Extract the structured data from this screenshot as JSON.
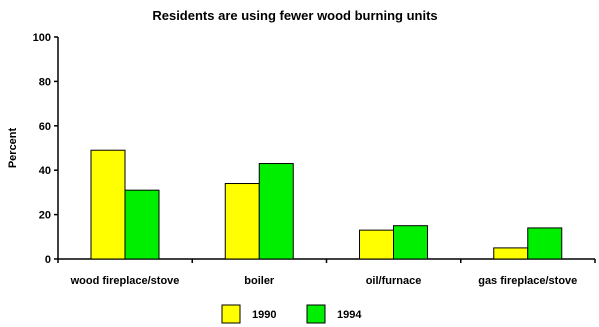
{
  "chart_data": {
    "type": "bar",
    "title": "Residents are using fewer wood burning units",
    "ylabel": "Percent",
    "xlabel": "",
    "categories": [
      "wood fireplace/stove",
      "boiler",
      "oil/furnace",
      "gas fireplace/stove"
    ],
    "series": [
      {
        "name": "1990",
        "values": [
          49,
          34,
          13,
          5
        ],
        "color": "#ffff00"
      },
      {
        "name": "1994",
        "values": [
          31,
          43,
          15,
          14
        ],
        "color": "#00ee00"
      }
    ],
    "ylim": [
      0,
      100
    ],
    "yticks": [
      0,
      20,
      40,
      60,
      80,
      100
    ],
    "grid": false,
    "legend_position": "bottom"
  }
}
